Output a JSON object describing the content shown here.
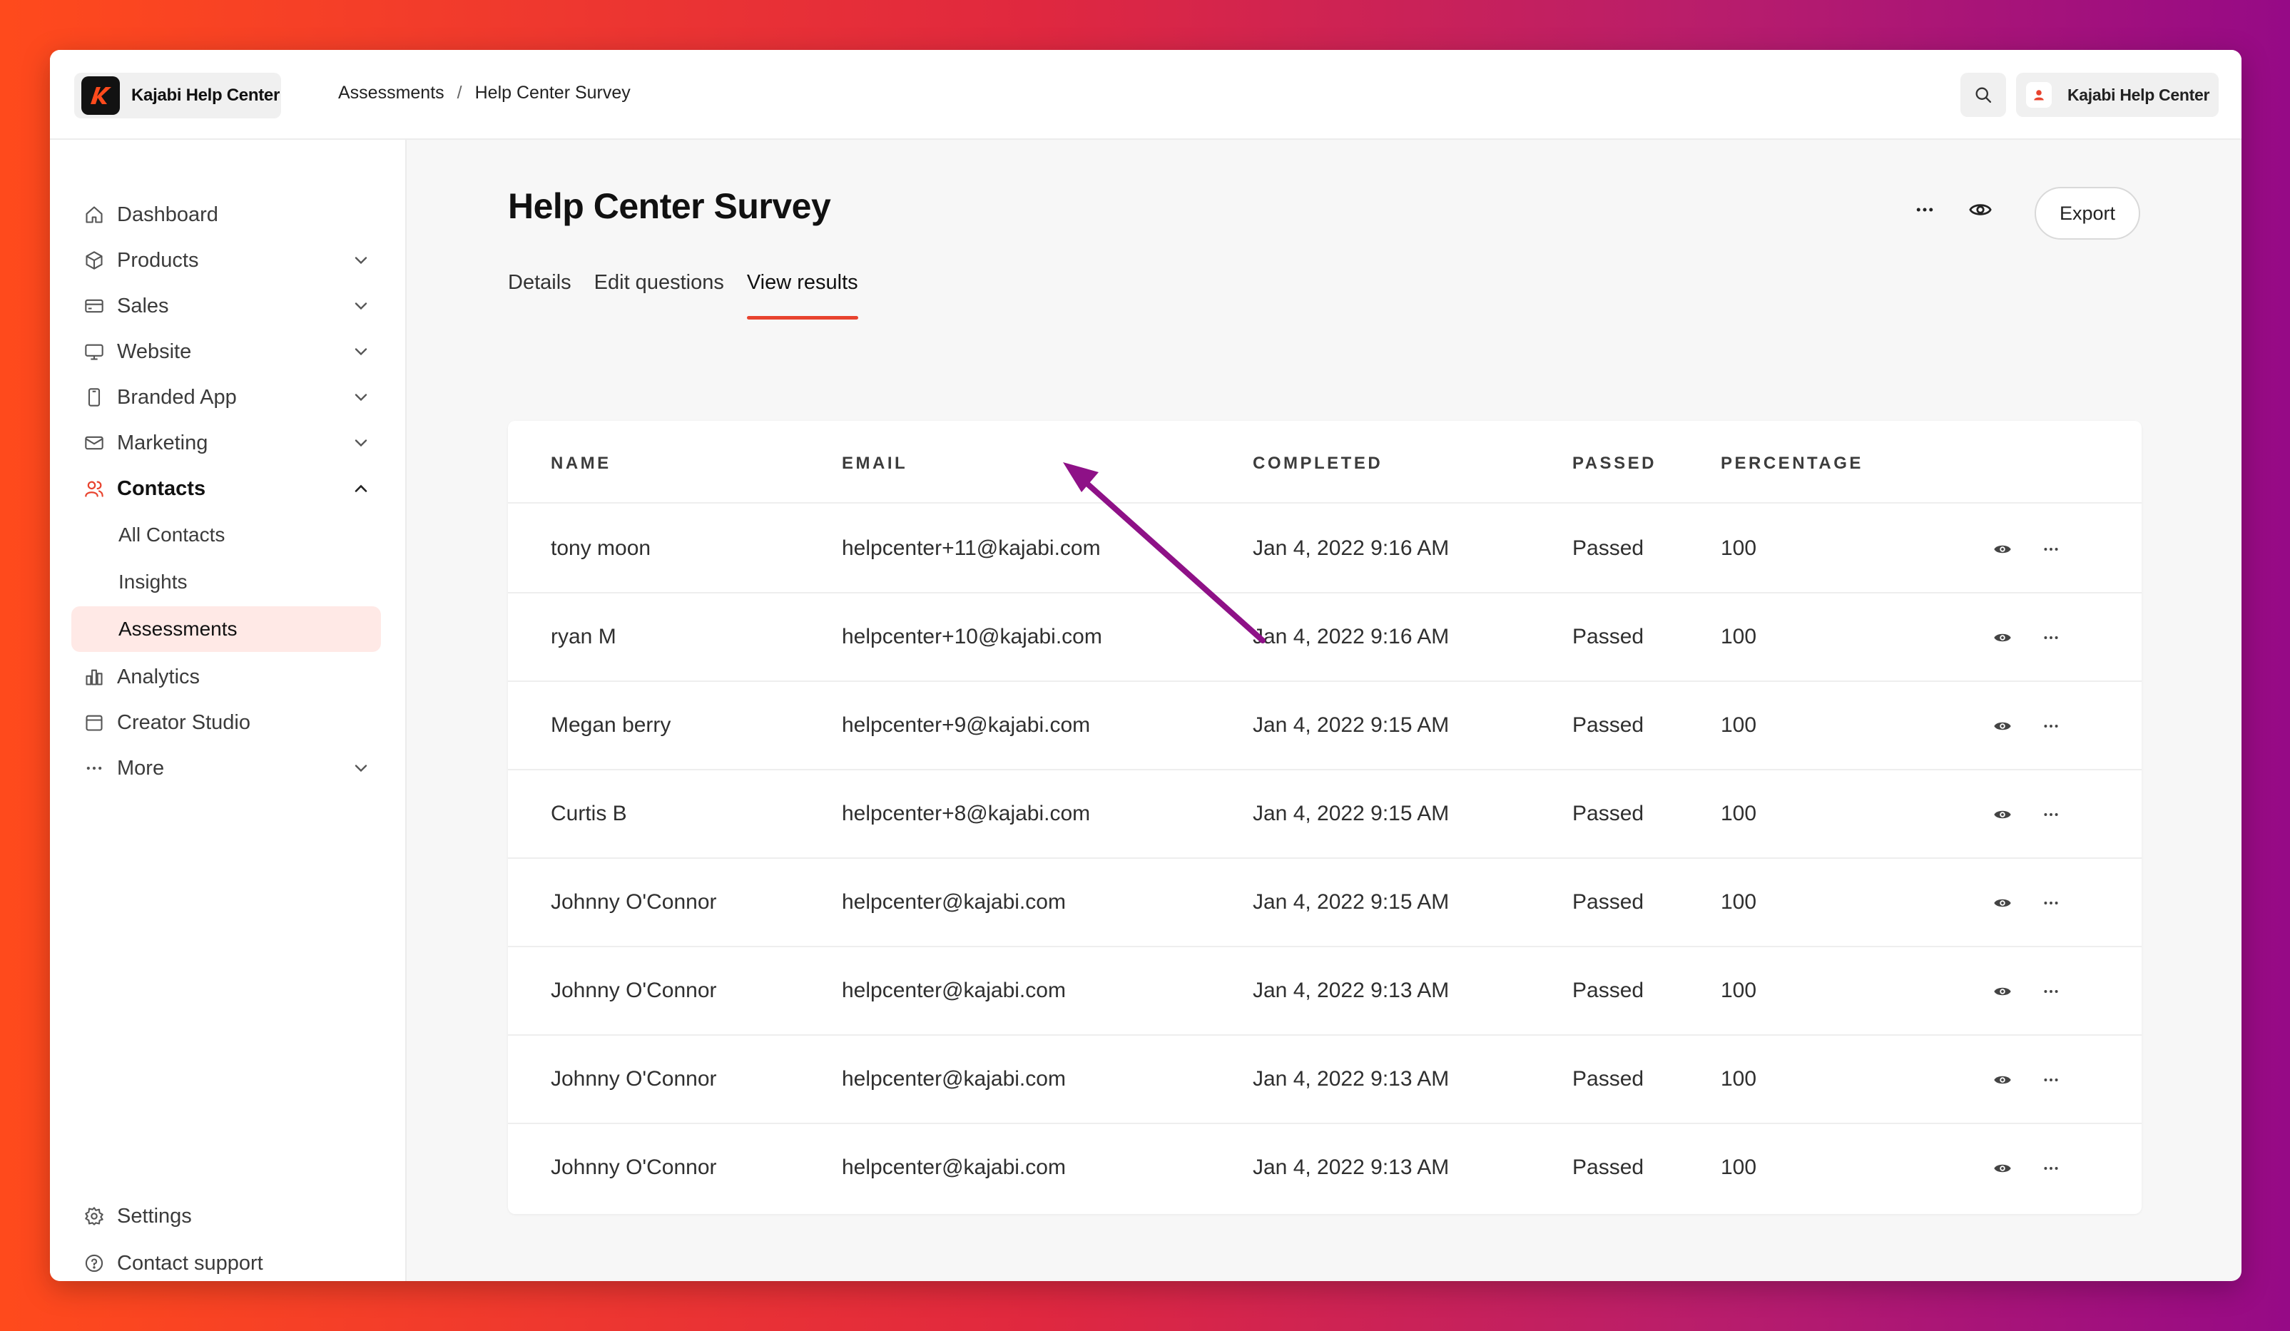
{
  "app": {
    "brand_name": "Kajabi Help Center",
    "account_name": "Kajabi Help Center"
  },
  "breadcrumb": {
    "parent": "Assessments",
    "separator": "/",
    "current": "Help Center Survey"
  },
  "sidebar": {
    "items": [
      {
        "label": "Dashboard",
        "icon": "home-icon"
      },
      {
        "label": "Products",
        "icon": "box-icon"
      },
      {
        "label": "Sales",
        "icon": "credit-card-icon"
      },
      {
        "label": "Website",
        "icon": "monitor-icon"
      },
      {
        "label": "Branded App",
        "icon": "phone-icon"
      },
      {
        "label": "Marketing",
        "icon": "mail-icon"
      },
      {
        "label": "Contacts",
        "icon": "users-icon"
      },
      {
        "label": "Analytics",
        "icon": "bar-chart-icon"
      },
      {
        "label": "Creator Studio",
        "icon": "calendar-icon"
      },
      {
        "label": "More",
        "icon": "more-icon"
      }
    ],
    "contacts_sub": [
      "All Contacts",
      "Insights",
      "Assessments"
    ],
    "footer": [
      {
        "label": "Settings",
        "icon": "gear-icon"
      },
      {
        "label": "Contact support",
        "icon": "help-circle-icon"
      }
    ]
  },
  "page": {
    "title": "Help Center Survey",
    "export_label": "Export",
    "tabs": [
      "Details",
      "Edit questions",
      "View results"
    ],
    "active_tab": "View results"
  },
  "table": {
    "headers": [
      "NAME",
      "EMAIL",
      "COMPLETED",
      "PASSED",
      "PERCENTAGE"
    ],
    "rows": [
      {
        "name": "tony moon",
        "email": "helpcenter+11@kajabi.com",
        "completed": "Jan 4, 2022 9:16 AM",
        "passed": "Passed",
        "percentage": "100"
      },
      {
        "name": "ryan M",
        "email": "helpcenter+10@kajabi.com",
        "completed": "Jan 4, 2022 9:16 AM",
        "passed": "Passed",
        "percentage": "100"
      },
      {
        "name": "Megan berry",
        "email": "helpcenter+9@kajabi.com",
        "completed": "Jan 4, 2022 9:15 AM",
        "passed": "Passed",
        "percentage": "100"
      },
      {
        "name": "Curtis B",
        "email": "helpcenter+8@kajabi.com",
        "completed": "Jan 4, 2022 9:15 AM",
        "passed": "Passed",
        "percentage": "100"
      },
      {
        "name": "Johnny O'Connor",
        "email": "helpcenter@kajabi.com",
        "completed": "Jan 4, 2022 9:15 AM",
        "passed": "Passed",
        "percentage": "100"
      },
      {
        "name": "Johnny O'Connor",
        "email": "helpcenter@kajabi.com",
        "completed": "Jan 4, 2022 9:13 AM",
        "passed": "Passed",
        "percentage": "100"
      },
      {
        "name": "Johnny O'Connor",
        "email": "helpcenter@kajabi.com",
        "completed": "Jan 4, 2022 9:13 AM",
        "passed": "Passed",
        "percentage": "100"
      },
      {
        "name": "Johnny O'Connor",
        "email": "helpcenter@kajabi.com",
        "completed": "Jan 4, 2022 9:13 AM",
        "passed": "Passed",
        "percentage": "100"
      }
    ]
  },
  "colors": {
    "accent": "#e8432e",
    "selected_bg": "#ffe9e6",
    "annotation_arrow": "#8e1187"
  }
}
